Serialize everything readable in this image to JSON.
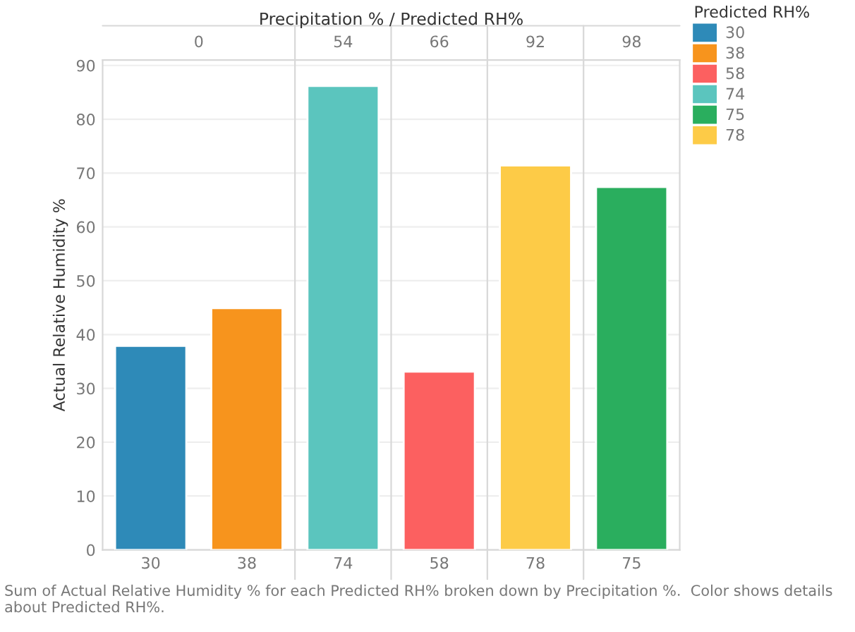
{
  "chart_data": {
    "type": "bar",
    "ylabel": "Actual Relative Humidity %",
    "title": "Precipitation % / Predicted RH%",
    "categories": [
      "30",
      "38",
      "74",
      "58",
      "78",
      "75"
    ],
    "series": [
      {
        "name": "30",
        "color": "#2e8ab8",
        "values": [
          37.9,
          null,
          null,
          null,
          null,
          null
        ]
      },
      {
        "name": "38",
        "color": "#f7941d",
        "values": [
          null,
          44.9,
          null,
          null,
          null,
          null
        ]
      },
      {
        "name": "58",
        "color": "#fc6060",
        "values": [
          null,
          null,
          null,
          33.1,
          null,
          null
        ]
      },
      {
        "name": "74",
        "color": "#5bc5be",
        "values": [
          null,
          null,
          86.2,
          null,
          null,
          null
        ]
      },
      {
        "name": "75",
        "color": "#2aae5e",
        "values": [
          null,
          null,
          null,
          null,
          null,
          67.4
        ]
      },
      {
        "name": "78",
        "color": "#fdcb47",
        "values": [
          null,
          null,
          null,
          null,
          71.4,
          null
        ]
      }
    ],
    "legend_title": "Predicted RH%",
    "legend": "top right",
    "ylim": [
      0,
      91
    ],
    "yticks": [
      0,
      10,
      20,
      30,
      40,
      50,
      60,
      70,
      80,
      90
    ],
    "grid": "y",
    "annotations": [
      "0",
      "54",
      "66",
      "92",
      "98",
      "Sum of Actual Relative Humidity % for each Predicted RH% broken down by Precipitation %.  Color shows details about Predicted RH%."
    ]
  }
}
